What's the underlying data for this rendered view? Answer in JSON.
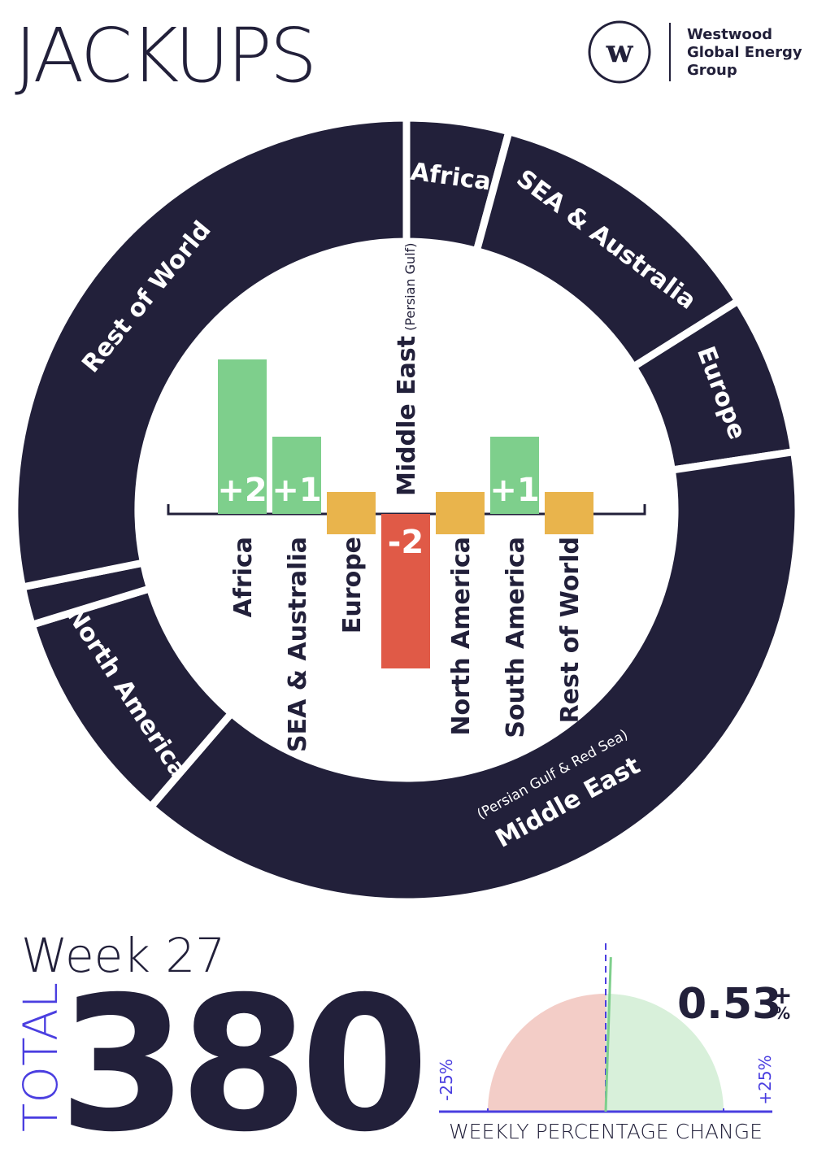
{
  "header": {
    "title": "JACKUPS",
    "logo_mark": "w",
    "logo_lines": [
      "Westwood",
      "Global Energy",
      "Group"
    ]
  },
  "summary": {
    "week": "Week 27",
    "total_label": "TOTAL",
    "total": 380
  },
  "chart_data": [
    {
      "type": "donut",
      "categories": [
        "Africa",
        "SEA & Australia",
        "Europe",
        "Middle East",
        "North America",
        null,
        "Rest of World"
      ],
      "values": [
        16,
        45,
        25,
        147,
        34,
        6,
        107
      ],
      "annotation": "(Persian Gulf & Red Sea)",
      "color": "#22203a"
    },
    {
      "type": "bar",
      "categories": [
        "Africa",
        "SEA & Australia",
        "Europe",
        "Middle East",
        "North America",
        "South America",
        "Rest of World"
      ],
      "values": [
        2,
        1,
        0,
        -2,
        0,
        1,
        0
      ],
      "value_labels": [
        "+2",
        "+1",
        null,
        "-2",
        null,
        "+1",
        null
      ],
      "annotation": "(Persian Gulf)",
      "colors": {
        "up": "#7ecf8c",
        "down": "#e05a47",
        "flat": "#e9b44c"
      }
    },
    {
      "type": "gauge",
      "value": 0.53,
      "value_label": "0.53",
      "sign": "+",
      "unit": "%",
      "xlim": [
        -25,
        25
      ],
      "xticks": [
        {
          "value": -25,
          "label": "-25%"
        },
        {
          "value": 25,
          "label": "+25%"
        }
      ],
      "xlabel": "WEEKLY PERCENTAGE CHANGE"
    }
  ]
}
